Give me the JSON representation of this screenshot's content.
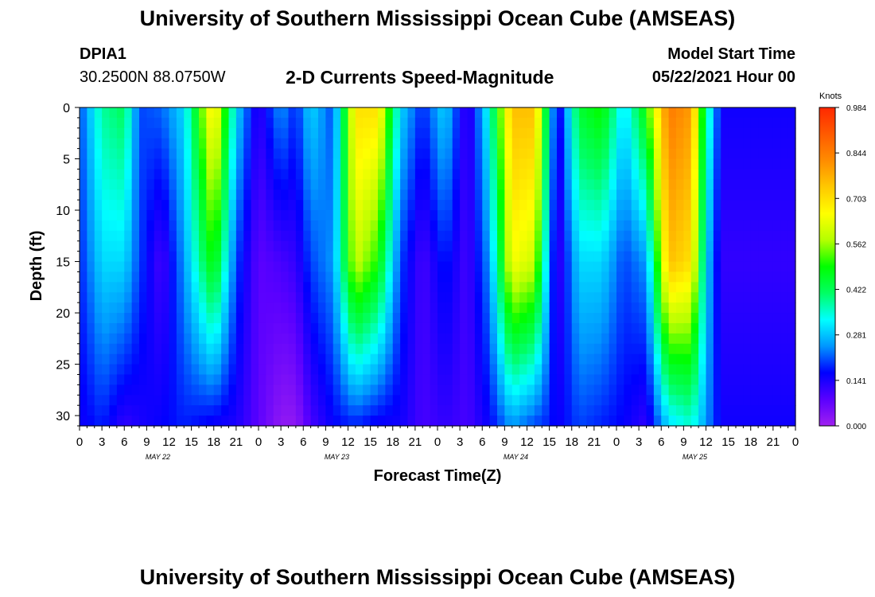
{
  "header": {
    "title": "University of Southern Mississippi Ocean Cube (AMSEAS)",
    "station_id": "DPIA1",
    "station_coords": "30.2500N  88.0750W",
    "plot_title": "2-D Currents Speed-Magnitude",
    "model_start_label": "Model Start Time",
    "model_start_value": "05/22/2021 Hour 00"
  },
  "footer": {
    "title": "University of Southern Mississippi Ocean Cube (AMSEAS)"
  },
  "chart_data": {
    "type": "heatmap",
    "xlabel": "Forecast Time(Z)",
    "ylabel": "Depth (ft)",
    "xlim": [
      0,
      96
    ],
    "ylim": [
      31,
      0
    ],
    "x_tick_labels": [
      "0",
      "3",
      "6",
      "9",
      "12",
      "15",
      "18",
      "21",
      "0",
      "3",
      "6",
      "9",
      "12",
      "15",
      "18",
      "21",
      "0",
      "3",
      "6",
      "9",
      "12",
      "15",
      "18",
      "21",
      "0",
      "3",
      "6",
      "9",
      "12",
      "15",
      "18",
      "21",
      "0"
    ],
    "x_date_labels": [
      {
        "label": "MAY 22",
        "hour": 10.5
      },
      {
        "label": "MAY 23",
        "hour": 34.5
      },
      {
        "label": "MAY 24",
        "hour": 58.5
      },
      {
        "label": "MAY 25",
        "hour": 82.5
      }
    ],
    "y_ticks": [
      0,
      5,
      10,
      15,
      20,
      25,
      30
    ],
    "colorbar": {
      "unit_label": "Knots",
      "min": 0.0,
      "max": 0.984,
      "tick_labels": [
        "0.984",
        "0.844",
        "0.703",
        "0.562",
        "0.422",
        "0.281",
        "0.141",
        "0.000"
      ],
      "colors": [
        "#a020f0",
        "#5a00ff",
        "#0000ff",
        "#0096ff",
        "#00ffff",
        "#00ff64",
        "#00ff00",
        "#b4ff00",
        "#ffff00",
        "#ffc800",
        "#ff8c00",
        "#ff5a00",
        "#ff2800"
      ]
    },
    "profiles": [
      {
        "hour": 0,
        "surface": 0.2,
        "mid": 0.18,
        "bottom": 0.15
      },
      {
        "hour": 3,
        "surface": 0.38,
        "mid": 0.3,
        "bottom": 0.18
      },
      {
        "hour": 6,
        "surface": 0.42,
        "mid": 0.3,
        "bottom": 0.12
      },
      {
        "hour": 8,
        "surface": 0.2,
        "mid": 0.2,
        "bottom": 0.14
      },
      {
        "hour": 11,
        "surface": 0.22,
        "mid": 0.1,
        "bottom": 0.16
      },
      {
        "hour": 14,
        "surface": 0.3,
        "mid": 0.25,
        "bottom": 0.18
      },
      {
        "hour": 18,
        "surface": 0.7,
        "mid": 0.5,
        "bottom": 0.15
      },
      {
        "hour": 21,
        "surface": 0.3,
        "mid": 0.2,
        "bottom": 0.14
      },
      {
        "hour": 24,
        "surface": 0.12,
        "mid": 0.08,
        "bottom": 0.08
      },
      {
        "hour": 27,
        "surface": 0.25,
        "mid": 0.1,
        "bottom": 0.02
      },
      {
        "hour": 29,
        "surface": 0.18,
        "mid": 0.12,
        "bottom": 0.02
      },
      {
        "hour": 31,
        "surface": 0.3,
        "mid": 0.2,
        "bottom": 0.1
      },
      {
        "hour": 34,
        "surface": 0.2,
        "mid": 0.25,
        "bottom": 0.16
      },
      {
        "hour": 37,
        "surface": 0.7,
        "mid": 0.6,
        "bottom": 0.18
      },
      {
        "hour": 40,
        "surface": 0.7,
        "mid": 0.5,
        "bottom": 0.15
      },
      {
        "hour": 43,
        "surface": 0.3,
        "mid": 0.2,
        "bottom": 0.15
      },
      {
        "hour": 46,
        "surface": 0.18,
        "mid": 0.1,
        "bottom": 0.1
      },
      {
        "hour": 49,
        "surface": 0.3,
        "mid": 0.18,
        "bottom": 0.12
      },
      {
        "hour": 52,
        "surface": 0.1,
        "mid": 0.1,
        "bottom": 0.1
      },
      {
        "hour": 55,
        "surface": 0.35,
        "mid": 0.25,
        "bottom": 0.16
      },
      {
        "hour": 58,
        "surface": 0.75,
        "mid": 0.65,
        "bottom": 0.25
      },
      {
        "hour": 61,
        "surface": 0.75,
        "mid": 0.6,
        "bottom": 0.2
      },
      {
        "hour": 63,
        "surface": 0.35,
        "mid": 0.25,
        "bottom": 0.18
      },
      {
        "hour": 64,
        "surface": 0.12,
        "mid": 0.1,
        "bottom": 0.15
      },
      {
        "hour": 67,
        "surface": 0.45,
        "mid": 0.3,
        "bottom": 0.2
      },
      {
        "hour": 70,
        "surface": 0.5,
        "mid": 0.3,
        "bottom": 0.18
      },
      {
        "hour": 73,
        "surface": 0.3,
        "mid": 0.2,
        "bottom": 0.16
      },
      {
        "hour": 76,
        "surface": 0.5,
        "mid": 0.25,
        "bottom": 0.12
      },
      {
        "hour": 79,
        "surface": 0.85,
        "mid": 0.75,
        "bottom": 0.3
      },
      {
        "hour": 82,
        "surface": 0.8,
        "mid": 0.7,
        "bottom": 0.35
      },
      {
        "hour": 84,
        "surface": 0.4,
        "mid": 0.3,
        "bottom": 0.25
      },
      {
        "hour": 86,
        "surface": 0.15,
        "mid": 0.12,
        "bottom": 0.15
      }
    ]
  }
}
